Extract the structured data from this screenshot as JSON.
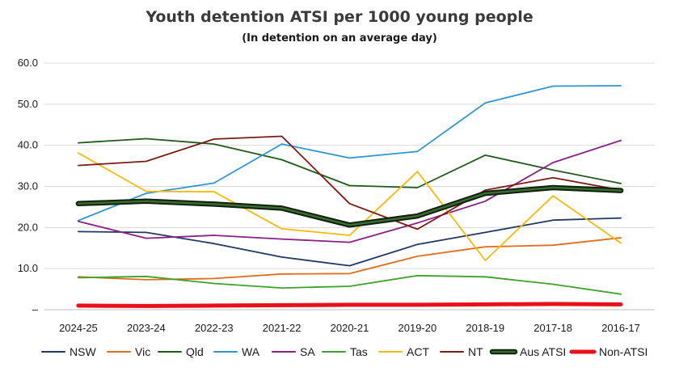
{
  "chart_data": {
    "type": "line",
    "title": "Youth detention ATSI  per 1000 young people",
    "subtitle": "(In detention on an average day)",
    "xlabel": "",
    "ylabel": "",
    "ylim": [
      0,
      60
    ],
    "yticks": [
      "–",
      "10.0",
      "20.0",
      "30.0",
      "40.0",
      "50.0",
      "60.0"
    ],
    "grid": true,
    "legend_position": "bottom",
    "categories": [
      "2024-25",
      "2023-24",
      "2022-23",
      "2021-22",
      "2020-21",
      "2019-20",
      "2018-19",
      "2017-18",
      "2016-17"
    ],
    "series": [
      {
        "name": "NSW",
        "color": "#1f3864",
        "width": 1.8,
        "values": [
          19.0,
          18.8,
          16.1,
          12.8,
          10.7,
          15.9,
          18.8,
          21.8,
          22.3
        ]
      },
      {
        "name": "Vic",
        "color": "#e36c1a",
        "width": 1.8,
        "values": [
          8.0,
          7.3,
          7.6,
          8.7,
          8.8,
          13.0,
          15.3,
          15.7,
          17.5
        ]
      },
      {
        "name": "Qld",
        "color": "#1e5b18",
        "width": 1.8,
        "values": [
          40.6,
          41.6,
          40.3,
          36.5,
          30.2,
          29.7,
          37.6,
          34.0,
          30.7
        ]
      },
      {
        "name": "WA",
        "color": "#2e95d3",
        "width": 1.8,
        "values": [
          21.7,
          28.3,
          30.8,
          40.3,
          36.9,
          38.5,
          50.3,
          54.4,
          54.5
        ]
      },
      {
        "name": "SA",
        "color": "#8a1f86",
        "width": 1.8,
        "values": [
          21.5,
          17.4,
          18.1,
          17.2,
          16.4,
          21.1,
          26.4,
          35.8,
          41.2
        ]
      },
      {
        "name": "Tas",
        "color": "#3da22a",
        "width": 1.8,
        "values": [
          7.8,
          8.1,
          6.4,
          5.3,
          5.7,
          8.3,
          8.0,
          6.2,
          3.8
        ]
      },
      {
        "name": "ACT",
        "color": "#f9b90a",
        "width": 1.8,
        "values": [
          38.1,
          28.8,
          28.7,
          19.7,
          18.1,
          33.6,
          12.0,
          27.7,
          16.2
        ]
      },
      {
        "name": "NT",
        "color": "#7b1c12",
        "width": 1.8,
        "values": [
          35.1,
          36.1,
          41.5,
          42.2,
          25.8,
          19.6,
          29.1,
          32.1,
          29.1
        ]
      },
      {
        "name": "Aus ATSI",
        "color": "#1c3d1c",
        "width": 4,
        "outline": true,
        "values": [
          25.8,
          26.4,
          25.7,
          24.7,
          20.6,
          22.8,
          28.3,
          29.7,
          29.0
        ]
      },
      {
        "name": "Non-ATSI",
        "color": "#e8101a",
        "width": 5,
        "values": [
          1.0,
          0.9,
          1.0,
          1.1,
          1.2,
          1.2,
          1.3,
          1.4,
          1.3
        ]
      }
    ]
  }
}
